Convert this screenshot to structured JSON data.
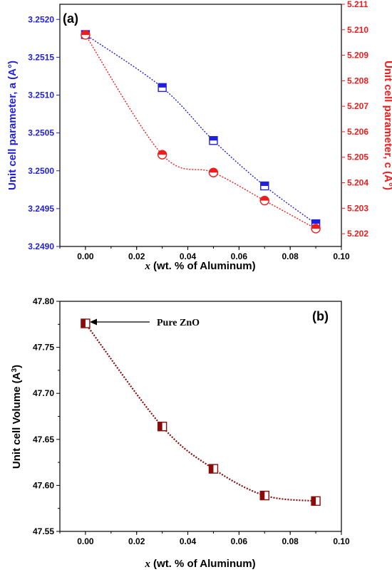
{
  "chart_data": [
    {
      "type": "line",
      "panel_label": "(a)",
      "xlabel_var": "x",
      "xlabel_rest": " (wt. % of Aluminum)",
      "ylabel_left": "Unit cell parameter,  a (A°)",
      "ylabel_right": "Unit cell parameter,  c (A°)",
      "xlim": [
        -0.01,
        0.1
      ],
      "x_ticks": [
        "0.00",
        "0.02",
        "0.04",
        "0.06",
        "0.08",
        "0.10"
      ],
      "ylim_left": [
        3.249,
        3.2522
      ],
      "y_ticks_left": [
        "3.2490",
        "3.2495",
        "3.2500",
        "3.2505",
        "3.2510",
        "3.2515",
        "3.2520"
      ],
      "ylim_right": [
        5.2015,
        5.211
      ],
      "y_ticks_right": [
        "5.202",
        "5.203",
        "5.204",
        "5.205",
        "5.206",
        "5.207",
        "5.208",
        "5.209",
        "5.210",
        "5.211"
      ],
      "series": [
        {
          "axis": "left",
          "color": "#1f1fe0",
          "marker": "half-filled-square",
          "x": [
            0.0,
            0.03,
            0.05,
            0.07,
            0.09
          ],
          "y": [
            3.2518,
            3.2511,
            3.2504,
            3.2498,
            3.2493
          ]
        },
        {
          "axis": "right",
          "color": "#ee1c1c",
          "marker": "half-filled-circle",
          "x": [
            0.0,
            0.03,
            0.05,
            0.07,
            0.09
          ],
          "y": [
            5.2098,
            5.2051,
            5.2044,
            5.2033,
            5.2022
          ]
        }
      ]
    },
    {
      "type": "line",
      "panel_label": "(b)",
      "xlabel_var": "x",
      "xlabel_rest": " (wt. % of Aluminum)",
      "ylabel": "Unit cell Volume (A",
      "ylabel_sup": "3",
      "ylabel_end": ")",
      "xlim": [
        -0.01,
        0.1
      ],
      "x_ticks": [
        "0.00",
        "0.02",
        "0.04",
        "0.06",
        "0.08",
        "0.10"
      ],
      "ylim": [
        47.55,
        47.8
      ],
      "y_ticks": [
        "47.55",
        "47.60",
        "47.65",
        "47.70",
        "47.75",
        "47.80"
      ],
      "annotation": "Pure ZnO",
      "series": [
        {
          "color": "#8b0a0a",
          "marker": "half-filled-square",
          "x": [
            0.0,
            0.03,
            0.05,
            0.07,
            0.09
          ],
          "y": [
            47.776,
            47.664,
            47.618,
            47.589,
            47.583
          ]
        }
      ]
    }
  ]
}
